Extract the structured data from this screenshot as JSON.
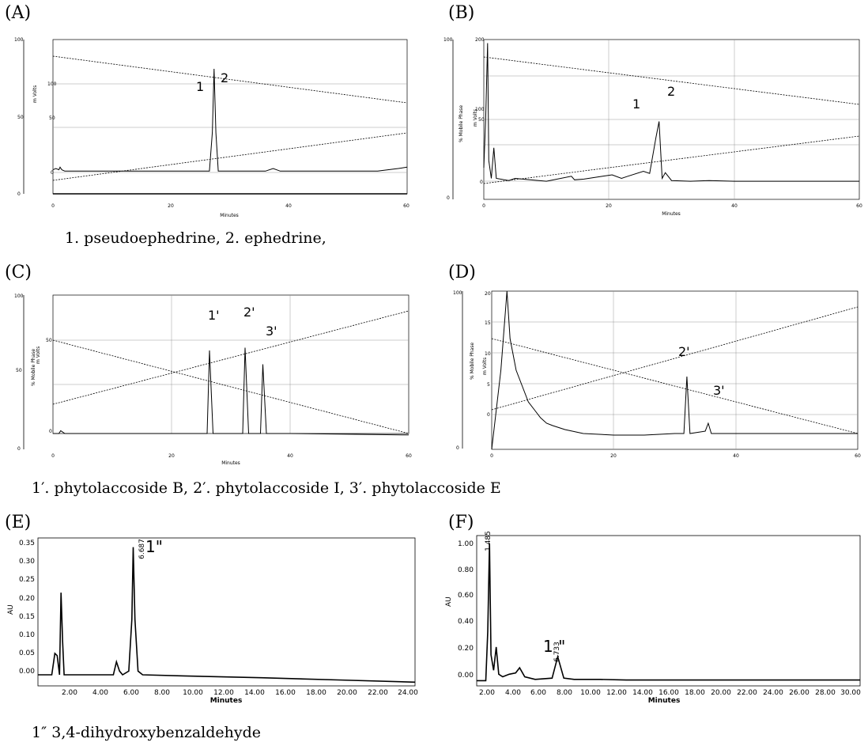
{
  "panels": {
    "A": {
      "label": "(A)",
      "xlabel": "Minutes",
      "ylabel": "m Volts",
      "yticks_left": [
        "100",
        "50",
        "0"
      ],
      "yticks_right": [
        "100",
        "50",
        "0"
      ],
      "xticks": [
        "0",
        "20",
        "40",
        "60"
      ],
      "peak1": "1",
      "peak2": "2"
    },
    "B": {
      "label": "(B)",
      "xlabel": "Minutes",
      "ylabel_left": "% Mobile Phase",
      "ylabel_right": "m Volts",
      "yticks_left": [
        "100",
        "0"
      ],
      "yticks_right": [
        "200",
        "100",
        "50",
        "0"
      ],
      "xticks": [
        "0",
        "20",
        "40",
        "60"
      ],
      "peak1": "1",
      "peak2": "2"
    },
    "C": {
      "label": "(C)",
      "xlabel": "Minutes",
      "ylabel_left": "% Mobile Phase",
      "ylabel_right": "m Volts",
      "yticks_left": [
        "100",
        "50",
        "0"
      ],
      "yticks_right": [
        "50",
        "0"
      ],
      "xticks": [
        "0",
        "20",
        "40",
        "60"
      ],
      "peak1": "1'",
      "peak2": "2'",
      "peak3": "3'"
    },
    "D": {
      "label": "(D)",
      "xlabel": "Minutes",
      "ylabel_left": "% Mobile Phase",
      "ylabel_right": "m Volts",
      "yticks_left": [
        "100",
        "0"
      ],
      "yticks_right": [
        "20",
        "15",
        "10",
        "5",
        "0"
      ],
      "xticks": [
        "0",
        "20",
        "40",
        "60"
      ],
      "peak2": "2'",
      "peak3": "3'"
    },
    "E": {
      "label": "(E)",
      "xlabel": "Minutes",
      "ylabel": "AU",
      "yticks": [
        "0.35",
        "0.30",
        "0.25",
        "0.20",
        "0.15",
        "0.10",
        "0.05",
        "0.00"
      ],
      "xticks": [
        "2.00",
        "4.00",
        "6.00",
        "8.00",
        "10.00",
        "12.00",
        "14.00",
        "16.00",
        "18.00",
        "20.00",
        "22.00",
        "24.00"
      ],
      "peak_rt": "6.687",
      "peak": "1\""
    },
    "F": {
      "label": "(F)",
      "xlabel": "Minutes",
      "ylabel": "AU",
      "yticks": [
        "1.00",
        "0.80",
        "0.60",
        "0.40",
        "0.20",
        "0.00"
      ],
      "xticks": [
        "2.00",
        "4.00",
        "6.00",
        "8.00",
        "10.00",
        "12.00",
        "14.00",
        "16.00",
        "18.00",
        "20.00",
        "22.00",
        "24.00",
        "26.00",
        "28.00",
        "30.00"
      ],
      "peak_rt0": "1.485",
      "peak_rt": "6.733",
      "peak": "1 \""
    }
  },
  "captions": {
    "ab": "1. pseudoephedrine,    2. ephedrine,",
    "cd": "1′. phytolaccoside B,  2′. phytolaccoside I,  3′. phytolaccoside E",
    "ef": "1″ 3,4-dihydroxybenzaldehyde"
  },
  "chart_data": [
    {
      "panel": "A",
      "type": "line",
      "xlabel": "Minutes",
      "ylabel": "m Volts",
      "xlim": [
        0,
        60
      ],
      "ylim": [
        0,
        100
      ],
      "series": [
        {
          "name": "chromatogram",
          "x": [
            0,
            0.5,
            1.0,
            1.2,
            1.5,
            2.0,
            5,
            10,
            20,
            26.5,
            27.0,
            27.3,
            27.6,
            28.0,
            30,
            36,
            37.3,
            38.5,
            45,
            55,
            58.5,
            60
          ],
          "y": [
            2,
            3,
            2,
            4,
            2,
            1,
            1,
            1,
            1,
            1,
            30,
            78,
            30,
            1,
            1,
            1,
            3,
            1,
            1,
            1,
            3,
            4
          ]
        }
      ],
      "peaks": [
        {
          "label": "1",
          "x": 27.0
        },
        {
          "label": "2",
          "x": 27.3
        }
      ]
    },
    {
      "panel": "B",
      "type": "line",
      "xlabel": "Minutes",
      "xlim": [
        0,
        60
      ],
      "ylim": [
        0,
        200
      ],
      "series": [
        {
          "name": "chromatogram",
          "x": [
            0,
            0.3,
            0.6,
            0.8,
            1.2,
            1.6,
            2.0,
            4,
            5,
            10,
            14,
            14.5,
            16,
            19,
            20.5,
            22,
            23,
            25.5,
            26.5,
            27.5,
            28.0,
            28.5,
            29.0,
            30,
            33,
            36,
            40,
            50,
            60
          ],
          "y": [
            20,
            90,
            195,
            30,
            5,
            48,
            5,
            2,
            5,
            1,
            8,
            3,
            4,
            8,
            10,
            5,
            8,
            15,
            12,
            62,
            85,
            5,
            13,
            2,
            1,
            2,
            1,
            1,
            1
          ]
        }
      ],
      "peaks": [
        {
          "label": "1",
          "x": 27.5
        },
        {
          "label": "2",
          "x": 28.0
        }
      ]
    },
    {
      "panel": "C",
      "type": "line",
      "xlabel": "Minutes",
      "xlim": [
        0,
        60
      ],
      "ylim": [
        0,
        100
      ],
      "series": [
        {
          "name": "chromatogram",
          "x": [
            0,
            1,
            1.3,
            2,
            20,
            26,
            26.4,
            27,
            32,
            32.4,
            33,
            35,
            35.4,
            36,
            40,
            60
          ],
          "y": [
            0,
            0,
            2,
            0,
            0,
            0,
            60,
            0,
            0,
            62,
            0,
            0,
            50,
            0,
            0,
            -1
          ]
        }
      ],
      "peaks": [
        {
          "label": "1'",
          "x": 26.4
        },
        {
          "label": "2'",
          "x": 32.4
        },
        {
          "label": "3'",
          "x": 35.4
        }
      ]
    },
    {
      "panel": "D",
      "type": "line",
      "xlabel": "Minutes",
      "xlim": [
        0,
        60
      ],
      "ylim": [
        0,
        20
      ],
      "series": [
        {
          "name": "chromatogram",
          "x": [
            0,
            1.5,
            2.5,
            3.0,
            4,
            5,
            6,
            7,
            8,
            9,
            10,
            12,
            15,
            20,
            25,
            30,
            31.5,
            32,
            32.5,
            35,
            35.5,
            36,
            40,
            50,
            60
          ],
          "y": [
            0,
            10,
            20,
            14,
            10,
            8,
            6,
            5,
            4,
            3.3,
            3,
            2.5,
            2,
            1.8,
            1.8,
            2,
            2,
            9.2,
            2,
            2.3,
            3.3,
            2,
            2,
            2,
            2
          ]
        }
      ],
      "peaks": [
        {
          "label": "2'",
          "x": 32.0
        },
        {
          "label": "3'",
          "x": 35.5
        }
      ]
    },
    {
      "panel": "E",
      "type": "line",
      "xlabel": "Minutes",
      "ylabel": "AU",
      "xlim": [
        0.5,
        25
      ],
      "ylim": [
        -0.03,
        0.37
      ],
      "series": [
        {
          "name": "chromatogram",
          "x": [
            0.5,
            1.4,
            1.6,
            1.75,
            1.9,
            2.0,
            2.1,
            2.2,
            2.4,
            4.3,
            5.4,
            5.6,
            5.8,
            6.0,
            6.4,
            6.6,
            6.687,
            6.8,
            7.0,
            7.3,
            10,
            15,
            20,
            25
          ],
          "y": [
            0.0,
            0.0,
            0.058,
            0.052,
            0.0,
            0.222,
            0.09,
            0.0,
            0.0,
            0.0,
            0.0,
            0.035,
            0.01,
            0.0,
            0.01,
            0.15,
            0.345,
            0.15,
            0.01,
            0.0,
            -0.003,
            -0.008,
            -0.014,
            -0.02
          ]
        }
      ],
      "peaks": [
        {
          "label": "1\"",
          "x": 6.687,
          "rt_label": "6.687"
        }
      ]
    },
    {
      "panel": "F",
      "type": "line",
      "xlabel": "Minutes",
      "ylabel": "AU",
      "xlim": [
        0.5,
        30
      ],
      "ylim": [
        -0.04,
        1.12
      ],
      "series": [
        {
          "name": "chromatogram",
          "x": [
            0.5,
            1.2,
            1.35,
            1.485,
            1.6,
            1.8,
            2.0,
            2.2,
            2.5,
            3.0,
            3.5,
            3.8,
            4.2,
            5.0,
            6.3,
            6.733,
            7.2,
            8,
            10,
            12,
            20,
            30
          ],
          "y": [
            0.0,
            0.0,
            0.38,
            1.06,
            0.2,
            0.08,
            0.26,
            0.05,
            0.03,
            0.05,
            0.06,
            0.1,
            0.03,
            0.01,
            0.02,
            0.185,
            0.02,
            0.01,
            0.01,
            0.005,
            0.005,
            0.005
          ]
        }
      ],
      "peaks": [
        {
          "label": "1 \"",
          "x": 6.733,
          "rt_label": "6.733"
        },
        {
          "x": 1.485,
          "rt_label": "1.485"
        }
      ]
    }
  ]
}
